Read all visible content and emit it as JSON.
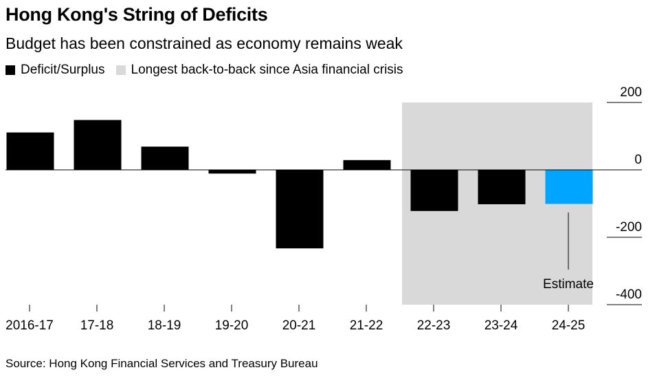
{
  "title": "Hong Kong's String of Deficits",
  "subtitle": "Budget has been constrained as economy remains weak",
  "legend": [
    {
      "label": "Deficit/Surplus",
      "color": "#000000"
    },
    {
      "label": "Longest back-to-back since Asia financial crisis",
      "color": "#d9d9d9"
    }
  ],
  "source": "Source: Hong Kong Financial Services and Treasury Bureau",
  "chart_data": {
    "type": "bar",
    "categories": [
      "2016-17",
      "17-18",
      "18-19",
      "19-20",
      "20-21",
      "21-22",
      "22-23",
      "23-24",
      "24-25"
    ],
    "values": [
      111,
      148,
      69,
      -11,
      -233,
      29,
      -122,
      -102,
      -101
    ],
    "bar_colors": [
      "#000000",
      "#000000",
      "#000000",
      "#000000",
      "#000000",
      "#000000",
      "#000000",
      "#000000",
      "#00a5ff"
    ],
    "ylim": [
      -400,
      200
    ],
    "yticks": [
      200,
      0,
      -200,
      -400
    ],
    "ytick_labels": [
      "200",
      "0",
      "-200",
      "-400"
    ],
    "shaded_range": {
      "from": "22-23",
      "to": "24-25",
      "color": "#d9d9d9"
    },
    "annotation": {
      "text": "Estimate",
      "category": "24-25"
    }
  }
}
